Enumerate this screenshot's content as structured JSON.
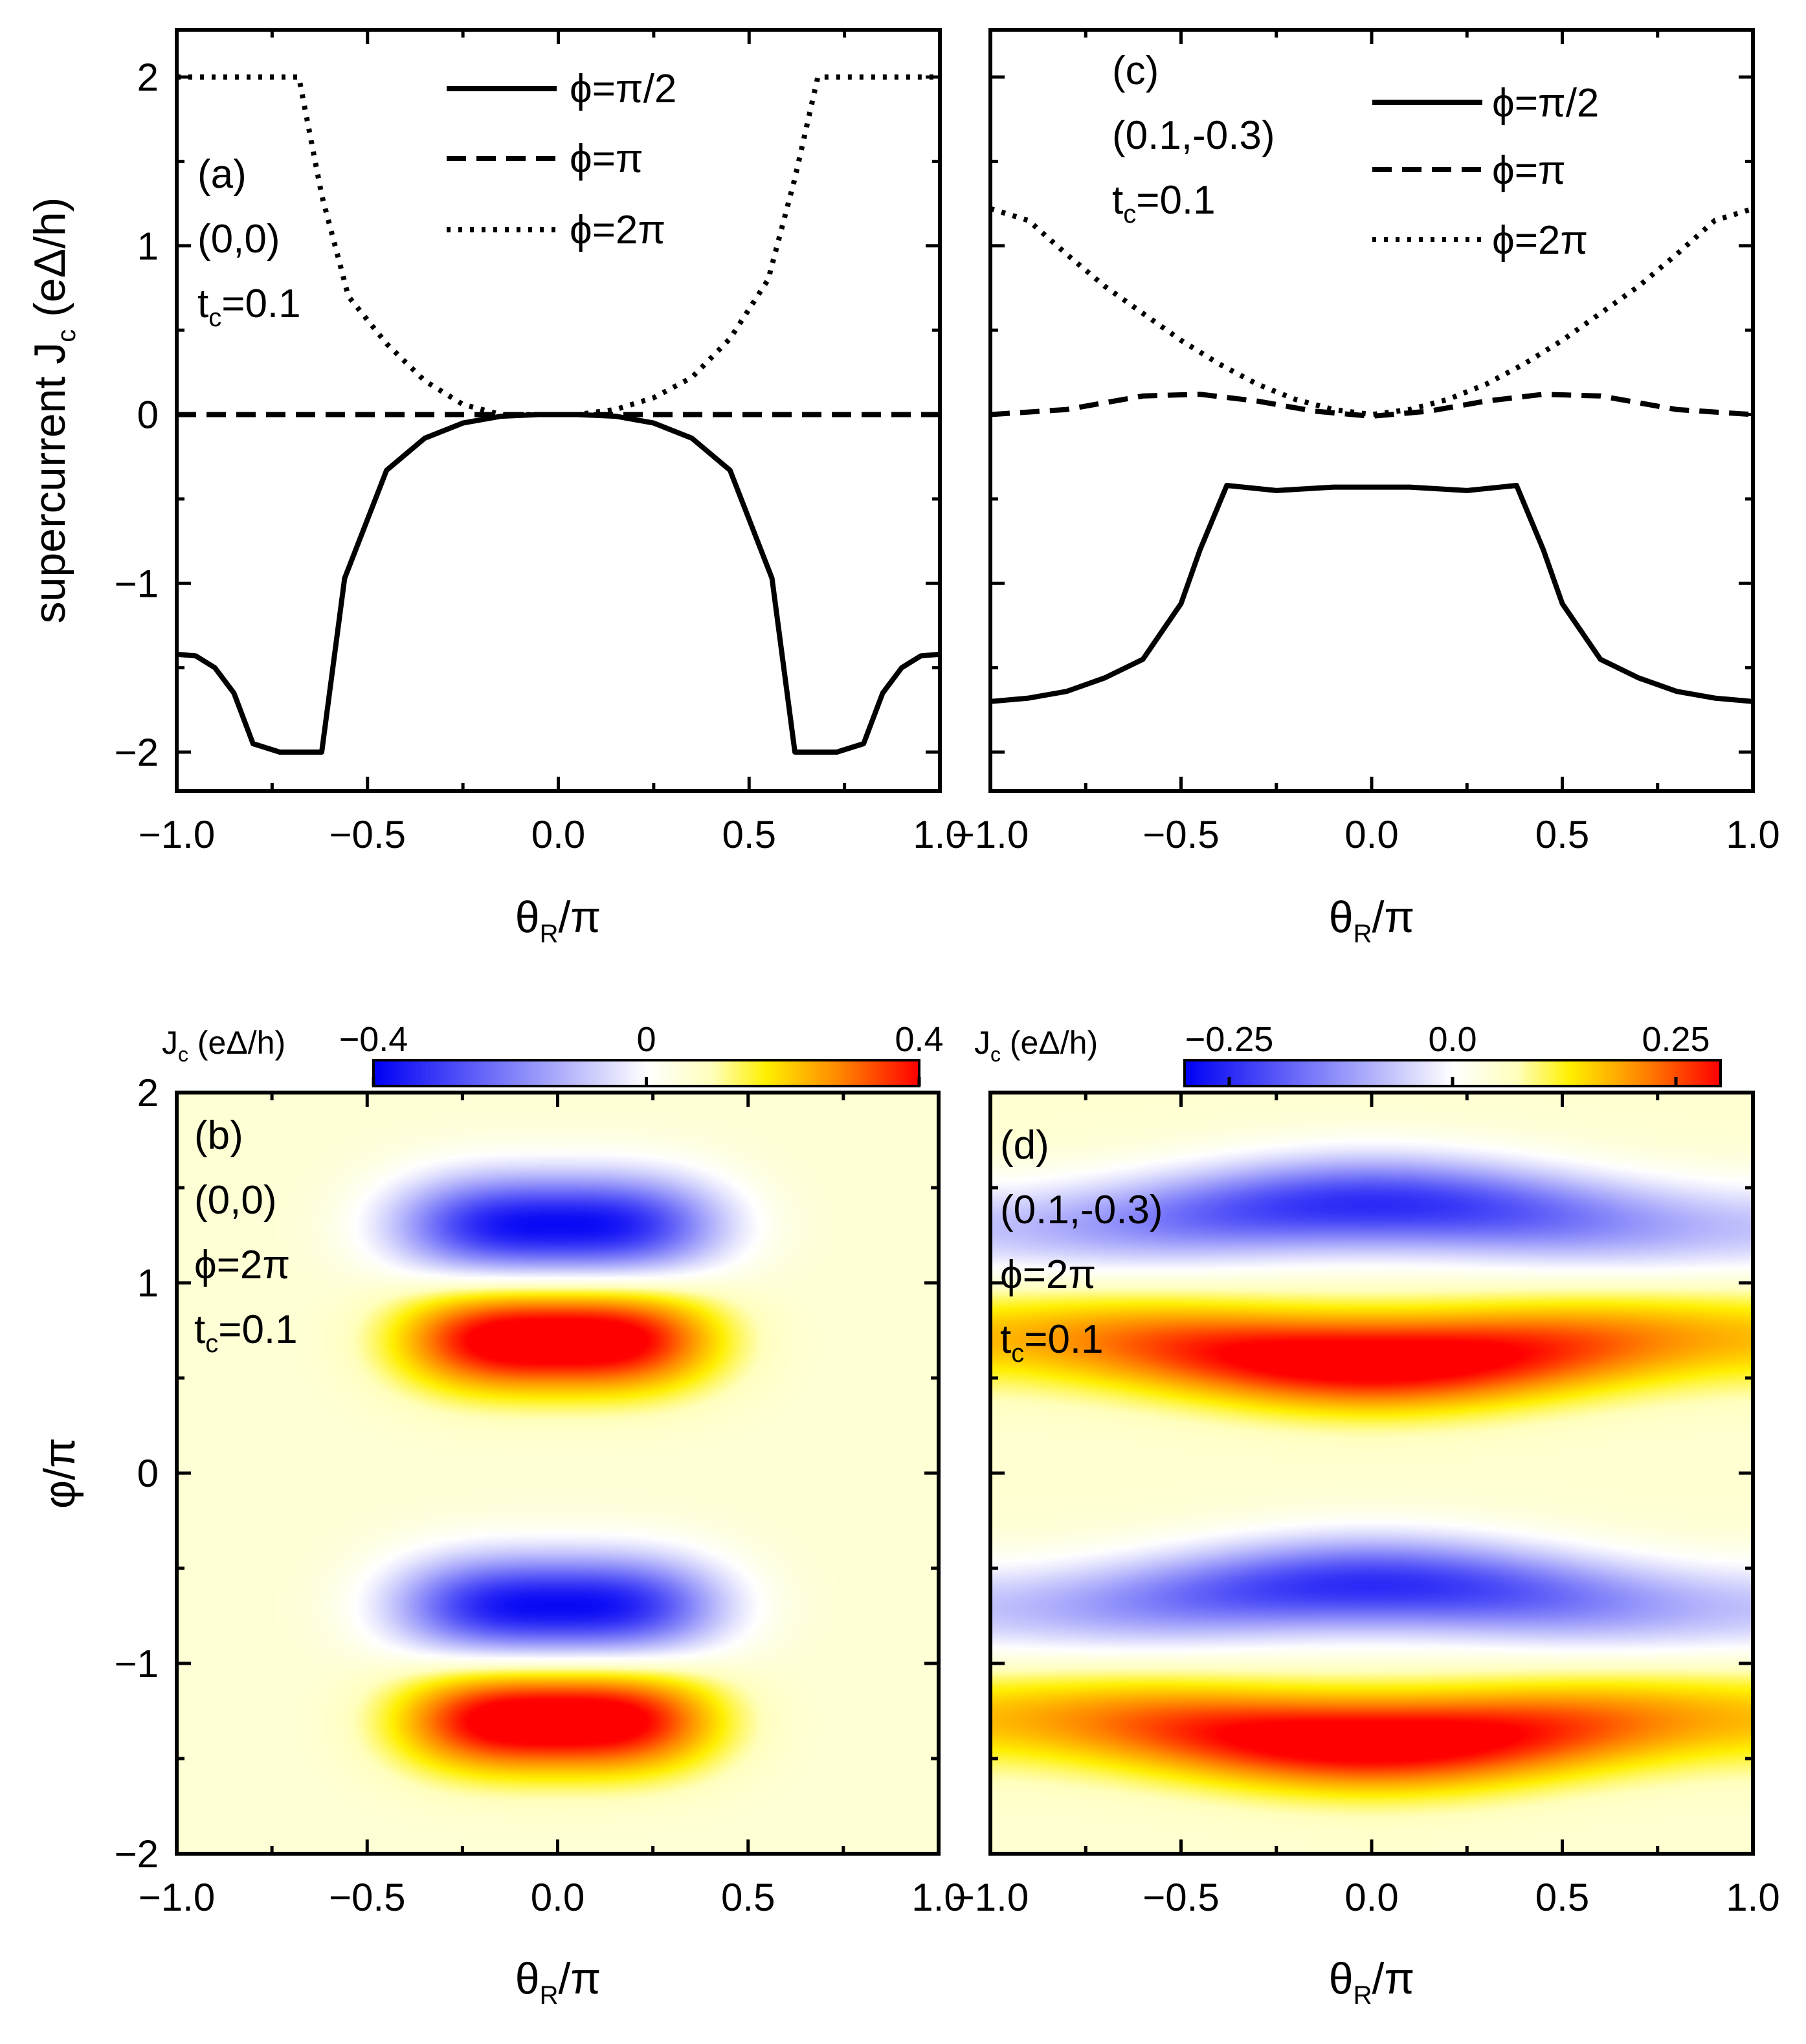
{
  "chart_data": [
    {
      "panel": "(a)",
      "type": "line",
      "annotations": [
        "(a)",
        "(0,0)",
        "t",
        "c",
        "=0.1"
      ],
      "xlabel": "θ",
      "xlabel_sub": "R",
      "xlabel_tail": "/π",
      "ylabel": "supercurrent J",
      "ylabel_sub": "c",
      "ylabel_tail": " (eΔ/h)",
      "xlim": [
        -1.0,
        1.0
      ],
      "ylim": [
        -2.23,
        2.28
      ],
      "xticks": [
        -1.0,
        -0.5,
        0.0,
        0.5,
        1.0
      ],
      "xtick_labels": [
        "−1.0",
        "−0.5",
        "0.0",
        "0.5",
        "1.0"
      ],
      "yticks": [
        -2,
        -1,
        0,
        1,
        2
      ],
      "ytick_labels": [
        "−2",
        "−1",
        "0",
        "1",
        "2"
      ],
      "series": [
        {
          "name": "ϕ=π/2",
          "style": "solid",
          "x": [
            -1.0,
            -0.95,
            -0.9,
            -0.85,
            -0.8,
            -0.73,
            -0.7,
            -0.62,
            -0.56,
            -0.45,
            -0.35,
            -0.25,
            -0.15,
            -0.05,
            0.0,
            0.05,
            0.15,
            0.25,
            0.35,
            0.45,
            0.56,
            0.62,
            0.7,
            0.73,
            0.8,
            0.85,
            0.9,
            0.95,
            1.0
          ],
          "y": [
            -1.42,
            -1.43,
            -1.5,
            -1.65,
            -1.95,
            -2.0,
            -2.0,
            -2.0,
            -0.97,
            -0.33,
            -0.14,
            -0.05,
            -0.01,
            0.0,
            0.0,
            0.0,
            -0.01,
            -0.05,
            -0.14,
            -0.33,
            -0.97,
            -2.0,
            -2.0,
            -2.0,
            -1.95,
            -1.65,
            -1.5,
            -1.43,
            -1.42
          ]
        },
        {
          "name": "ϕ=π",
          "style": "dashed",
          "x": [
            -1.0,
            1.0
          ],
          "y": [
            0.0,
            0.0
          ]
        },
        {
          "name": "ϕ=2π",
          "style": "dotted",
          "x": [
            -1.0,
            -0.9,
            -0.8,
            -0.68,
            -0.62,
            -0.55,
            -0.45,
            -0.35,
            -0.25,
            -0.15,
            -0.05,
            0.05,
            0.15,
            0.25,
            0.35,
            0.45,
            0.55,
            0.62,
            0.68,
            0.8,
            0.9,
            1.0
          ],
          "y": [
            2.0,
            2.0,
            2.0,
            2.0,
            1.3,
            0.7,
            0.42,
            0.2,
            0.06,
            0.0,
            0.0,
            0.0,
            0.03,
            0.1,
            0.22,
            0.45,
            0.8,
            1.4,
            2.0,
            2.0,
            2.0,
            2.0
          ]
        }
      ]
    },
    {
      "panel": "(c)",
      "type": "line",
      "annotations": [
        "(c)",
        "(0.1,-0.3)",
        "t",
        "c",
        "=0.1"
      ],
      "xlabel": "θ",
      "xlabel_sub": "R",
      "xlabel_tail": "/π",
      "xlim": [
        -1.0,
        1.0
      ],
      "ylim": [
        -2.23,
        2.28
      ],
      "xticks": [
        -1.0,
        -0.5,
        0.0,
        0.5,
        1.0
      ],
      "xtick_labels": [
        "−1.0",
        "−0.5",
        "0.0",
        "0.5",
        "1.0"
      ],
      "series": [
        {
          "name": "ϕ=π/2",
          "style": "solid",
          "x": [
            -1.0,
            -0.9,
            -0.8,
            -0.7,
            -0.6,
            -0.5,
            -0.45,
            -0.38,
            -0.25,
            -0.1,
            0.0,
            0.1,
            0.25,
            0.38,
            0.45,
            0.5,
            0.6,
            0.7,
            0.8,
            0.9,
            1.0
          ],
          "y": [
            -1.7,
            -1.68,
            -1.64,
            -1.56,
            -1.45,
            -1.12,
            -0.8,
            -0.42,
            -0.45,
            -0.43,
            -0.43,
            -0.43,
            -0.45,
            -0.42,
            -0.8,
            -1.12,
            -1.45,
            -1.56,
            -1.64,
            -1.68,
            -1.7
          ]
        },
        {
          "name": "ϕ=π",
          "style": "dashed",
          "x": [
            -1.0,
            -0.8,
            -0.6,
            -0.45,
            -0.3,
            -0.15,
            0.0,
            0.15,
            0.3,
            0.45,
            0.6,
            0.8,
            1.0
          ],
          "y": [
            0.0,
            0.03,
            0.11,
            0.12,
            0.08,
            0.02,
            -0.01,
            0.02,
            0.08,
            0.12,
            0.11,
            0.03,
            0.0
          ]
        },
        {
          "name": "ϕ=2π",
          "style": "dotted",
          "x": [
            -1.0,
            -0.9,
            -0.8,
            -0.7,
            -0.6,
            -0.5,
            -0.4,
            -0.3,
            -0.2,
            -0.1,
            0.0,
            0.1,
            0.2,
            0.3,
            0.4,
            0.5,
            0.6,
            0.7,
            0.8,
            0.9,
            1.0
          ],
          "y": [
            1.22,
            1.15,
            0.95,
            0.76,
            0.6,
            0.44,
            0.3,
            0.18,
            0.09,
            0.03,
            0.0,
            0.03,
            0.09,
            0.18,
            0.3,
            0.44,
            0.6,
            0.76,
            0.95,
            1.15,
            1.22
          ]
        }
      ]
    },
    {
      "panel": "(b)",
      "type": "heatmap",
      "annotations": [
        "(b)",
        "(0,0)",
        "ϕ=2π",
        "t",
        "c",
        "=0.1"
      ],
      "colorbar_label": "J",
      "colorbar_sub": "c",
      "colorbar_tail": " (eΔ/h)",
      "colorbar_range": [
        -0.4,
        0.4
      ],
      "colorbar_ticks": [
        -0.4,
        0,
        0.4
      ],
      "colorbar_tick_labels": [
        "−0.4",
        "0",
        "0.4"
      ],
      "xlabel": "θ",
      "xlabel_sub": "R",
      "xlabel_tail": "/π",
      "ylabel": "φ/π",
      "xlim": [
        -1.0,
        1.0
      ],
      "ylim": [
        -2.0,
        2.0
      ],
      "xticks": [
        -1.0,
        -0.5,
        0.0,
        0.5,
        1.0
      ],
      "xtick_labels": [
        "−1.0",
        "−0.5",
        "0.0",
        "0.5",
        "1.0"
      ],
      "yticks": [
        -2,
        -1,
        0,
        1,
        2
      ],
      "ytick_labels": [
        "−2",
        "−1",
        "0",
        "1",
        "2"
      ],
      "background_value": 0.06,
      "blobs": [
        {
          "theta": 0.0,
          "phi": 1.3,
          "amplitude": -0.45,
          "width_theta": 0.42,
          "width_phi": 0.27
        },
        {
          "theta": 0.0,
          "phi": 0.7,
          "amplitude": 0.42,
          "width_theta": 0.4,
          "width_phi": 0.27
        },
        {
          "theta": 0.0,
          "phi": -0.7,
          "amplitude": -0.45,
          "width_theta": 0.42,
          "width_phi": 0.27
        },
        {
          "theta": 0.0,
          "phi": -1.3,
          "amplitude": 0.42,
          "width_theta": 0.4,
          "width_phi": 0.27
        }
      ]
    },
    {
      "panel": "(d)",
      "type": "heatmap",
      "annotations": [
        "(d)",
        "(0.1,-0.3)",
        "ϕ=2π",
        "t",
        "c",
        "=0.1"
      ],
      "colorbar_label": "J",
      "colorbar_sub": "c",
      "colorbar_tail": " (eΔ/h)",
      "colorbar_range": [
        -0.3,
        0.3
      ],
      "colorbar_ticks": [
        -0.25,
        0.0,
        0.25
      ],
      "colorbar_tick_labels": [
        "−0.25",
        "0.0",
        "0.25"
      ],
      "xlabel": "θ",
      "xlabel_sub": "R",
      "xlabel_tail": "/π",
      "xlim": [
        -1.0,
        1.0
      ],
      "ylim": [
        -2.0,
        2.0
      ],
      "xticks": [
        -1.0,
        -0.5,
        0.0,
        0.5,
        1.0
      ],
      "xtick_labels": [
        "−1.0",
        "−0.5",
        "0.0",
        "0.5",
        "1.0"
      ],
      "band_center_phi": [
        1.35,
        0.65,
        -0.65,
        -1.35
      ],
      "band_sign": [
        -1,
        1,
        -1,
        1
      ],
      "band_peak_value": 0.3,
      "band_width_phi": 0.25
    }
  ],
  "legend_labels": [
    "ϕ=π/2",
    "ϕ=π",
    "ϕ=2π"
  ]
}
